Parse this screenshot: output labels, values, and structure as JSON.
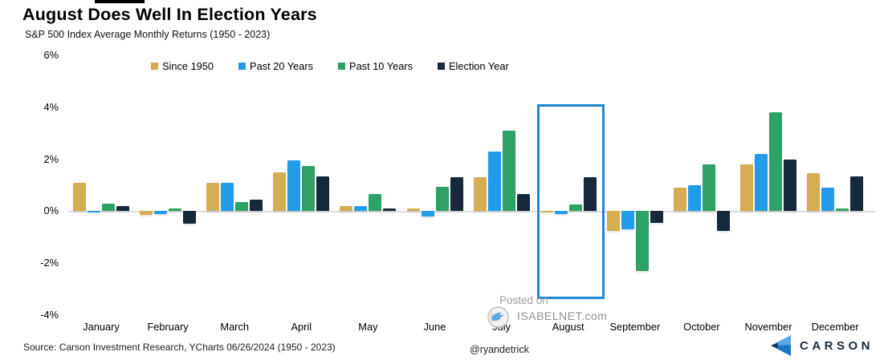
{
  "header": {
    "title": "August Does Well In Election Years",
    "subtitle": "S&P 500 Index Average Monthly Returns (1950 - 2023)"
  },
  "chart_data": {
    "type": "bar",
    "title": "August Does Well In Election Years",
    "subtitle": "S&P 500 Index Average Monthly Returns (1950 - 2023)",
    "categories": [
      "January",
      "February",
      "March",
      "April",
      "May",
      "June",
      "July",
      "August",
      "September",
      "October",
      "November",
      "December"
    ],
    "series": [
      {
        "name": "Since 1950",
        "color": "#D5AD52",
        "values": [
          1.1,
          -0.15,
          1.1,
          1.5,
          0.2,
          0.1,
          1.3,
          -0.05,
          -0.75,
          0.9,
          1.8,
          1.45
        ]
      },
      {
        "name": "Past 20 Years",
        "color": "#219CE9",
        "values": [
          -0.05,
          -0.1,
          1.1,
          1.95,
          0.2,
          -0.2,
          2.3,
          -0.1,
          -0.7,
          1.0,
          2.2,
          0.9
        ]
      },
      {
        "name": "Past 10 Years",
        "color": "#2EA266",
        "values": [
          0.3,
          0.1,
          0.35,
          1.75,
          0.65,
          0.95,
          3.1,
          0.25,
          -2.3,
          1.8,
          3.8,
          0.1
        ]
      },
      {
        "name": "Election Year",
        "color": "#16293C",
        "values": [
          0.2,
          -0.5,
          0.45,
          1.35,
          0.1,
          1.3,
          0.65,
          1.3,
          -0.45,
          -0.75,
          2.0,
          1.35
        ]
      }
    ],
    "ylim": [
      -4,
      6
    ],
    "yticks": [
      6,
      4,
      2,
      0,
      -2,
      -4
    ],
    "ytick_suffix": "%",
    "grid": false,
    "legend_position": "top-center",
    "highlight": {
      "category": "August",
      "border_color": "#2287D3"
    }
  },
  "watermark": {
    "line1": "Posted on",
    "line2": "ISABELNET.com"
  },
  "footer": {
    "source": "Source: Carson Investment Research, YCharts 06/26/2024 (1950 - 2023)",
    "handle": "@ryandetrick",
    "brand": "CARSON"
  }
}
